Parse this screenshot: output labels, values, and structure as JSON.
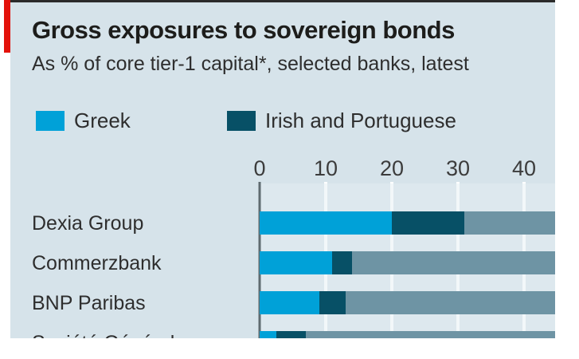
{
  "header": {
    "title": "Gross exposures to sovereign bonds",
    "subtitle": "As % of core tier-1 capital*, selected banks, latest"
  },
  "colors": {
    "greek": "#00a1d8",
    "irish_portuguese": "#075066",
    "unlabeled_remainder": "#6e94a4",
    "card_background": "#d6e3ea",
    "plot_background": "#dde8ee",
    "accent_red": "#e3120b",
    "gridline": "#f2f7f9",
    "axis": "#5f6b70"
  },
  "chart_data": {
    "type": "bar",
    "orientation": "horizontal",
    "title": "Gross exposures to sovereign bonds",
    "subtitle": "As % of core tier-1 capital*, selected banks, latest",
    "categories": [
      "Dexia Group",
      "Commerzbank",
      "BNP Paribas",
      "Société Générale"
    ],
    "series": [
      {
        "name": "Greek",
        "color": "#00a1d8",
        "values": [
          20,
          11,
          9,
          2.5
        ]
      },
      {
        "name": "Irish and Portuguese",
        "color": "#075066",
        "values": [
          11,
          3,
          4,
          4.5
        ]
      },
      {
        "name": "unlabeled",
        "color": "#6e94a4",
        "values": null,
        "note": "third stacked segment continues past the cropped right edge of the image; its legend entry is not visible"
      }
    ],
    "x_ticks": [
      0,
      10,
      20,
      30,
      40
    ],
    "x_tick_labels": [
      "0",
      "10",
      "20",
      "30",
      "40"
    ],
    "xlim_visible": [
      0,
      44.5
    ],
    "grid": "vertical white gridlines",
    "legend_position": "top",
    "crop_note": "fourth bar row and its label are cut off by the bottom edge of the screenshot"
  }
}
